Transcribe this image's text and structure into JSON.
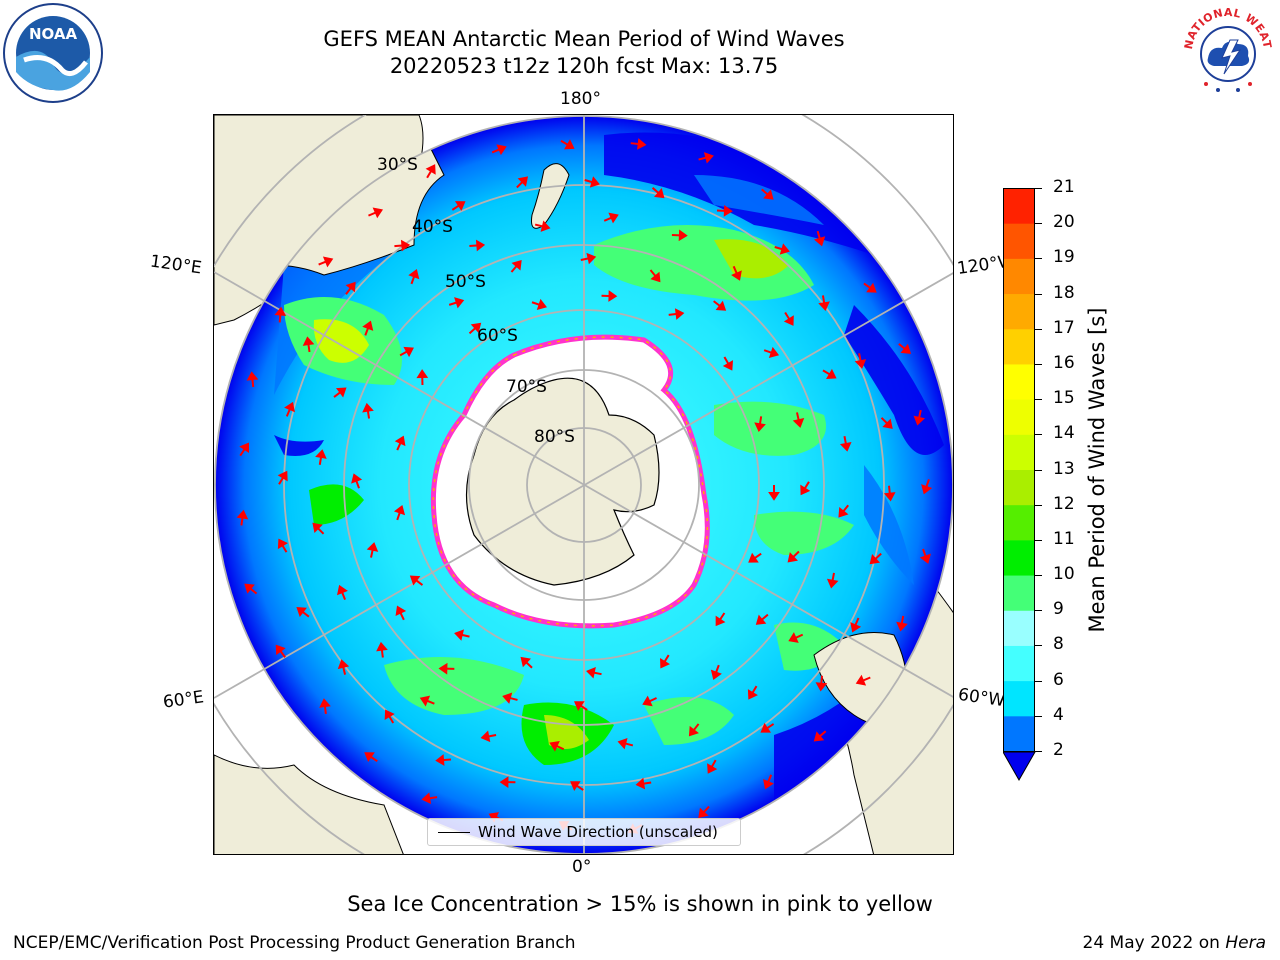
{
  "title": {
    "line1": "GEFS MEAN Antarctic Mean Period of Wind Waves",
    "line2": "20220523 t12z 120h fcst   Max: 13.75"
  },
  "map": {
    "longitude_labels": {
      "top": "180°",
      "bottom": "0°",
      "upper_left": "120°E",
      "upper_right": "120°W",
      "lower_left": "60°E",
      "lower_right": "60°W"
    },
    "latitude_labels": [
      "30°S",
      "40°S",
      "50°S",
      "60°S",
      "70°S",
      "80°S"
    ],
    "legend_label": "Wind Wave Direction (unscaled)",
    "colors": {
      "land": "#efedd9",
      "ice_interior": "#ffffff",
      "ice_edge": "#ff33cc",
      "graticule": "#b3b3b3",
      "arrow": "#ff0000"
    }
  },
  "colorbar": {
    "label": "Mean Period of Wind Waves [s]",
    "ticks": [
      "2",
      "4",
      "6",
      "8",
      "9",
      "10",
      "11",
      "12",
      "13",
      "14",
      "15",
      "16",
      "17",
      "18",
      "19",
      "20",
      "21"
    ],
    "colors": [
      "#0077ff",
      "#00e5ff",
      "#44ffff",
      "#99ffff",
      "#44ff77",
      "#00ee00",
      "#55ee00",
      "#aaee00",
      "#ccff00",
      "#eeff00",
      "#ffff00",
      "#ffd000",
      "#ffaa00",
      "#ff8800",
      "#ff5500",
      "#ff2200"
    ],
    "extend_color": "#0000ee"
  },
  "notes": {
    "ice": "Sea Ice Concentration > 15% is shown in pink to yellow"
  },
  "footer": {
    "left": "NCEP/EMC/Verification Post Processing Product Generation Branch",
    "date": "24 May 2022 on",
    "machine": "Hera"
  },
  "logos": {
    "noaa_text": "NOAA",
    "nws_arc_text": "NATIONAL WEATHER SERVICE"
  }
}
